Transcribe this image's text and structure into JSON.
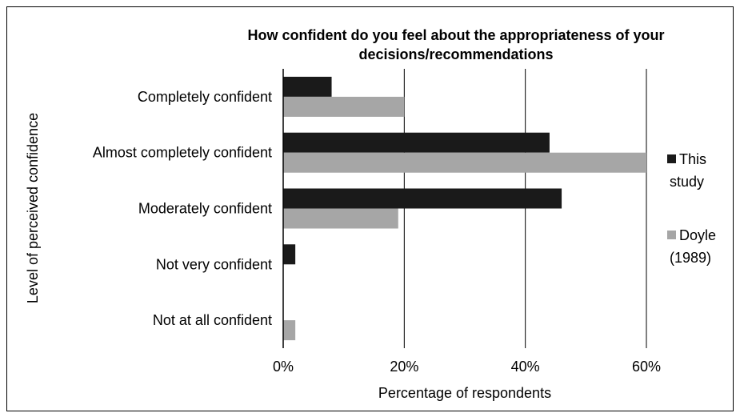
{
  "chart_data": {
    "type": "bar",
    "orientation": "horizontal",
    "title_lines": [
      "How confident do you feel about the appropriateness of your",
      "decisions/recommendations"
    ],
    "categories": [
      "Completely confident",
      "Almost completely confident",
      "Moderately confident",
      "Not very confident",
      "Not at all confident"
    ],
    "series": [
      {
        "name_lines": [
          "This",
          "study"
        ],
        "color": "#1a1a1a",
        "values": [
          8,
          44,
          46,
          2,
          0
        ]
      },
      {
        "name_lines": [
          "Doyle",
          "(1989)"
        ],
        "color": "#a6a6a6",
        "values": [
          20,
          60,
          19,
          0,
          2
        ]
      }
    ],
    "xlim": [
      0,
      60
    ],
    "xticks": [
      0,
      20,
      40,
      60
    ],
    "xtick_suffix": "%",
    "xlabel": "Percentage of respondents",
    "ylabel": "Level of perceived confidence",
    "grid": "vertical",
    "legend": "right"
  }
}
